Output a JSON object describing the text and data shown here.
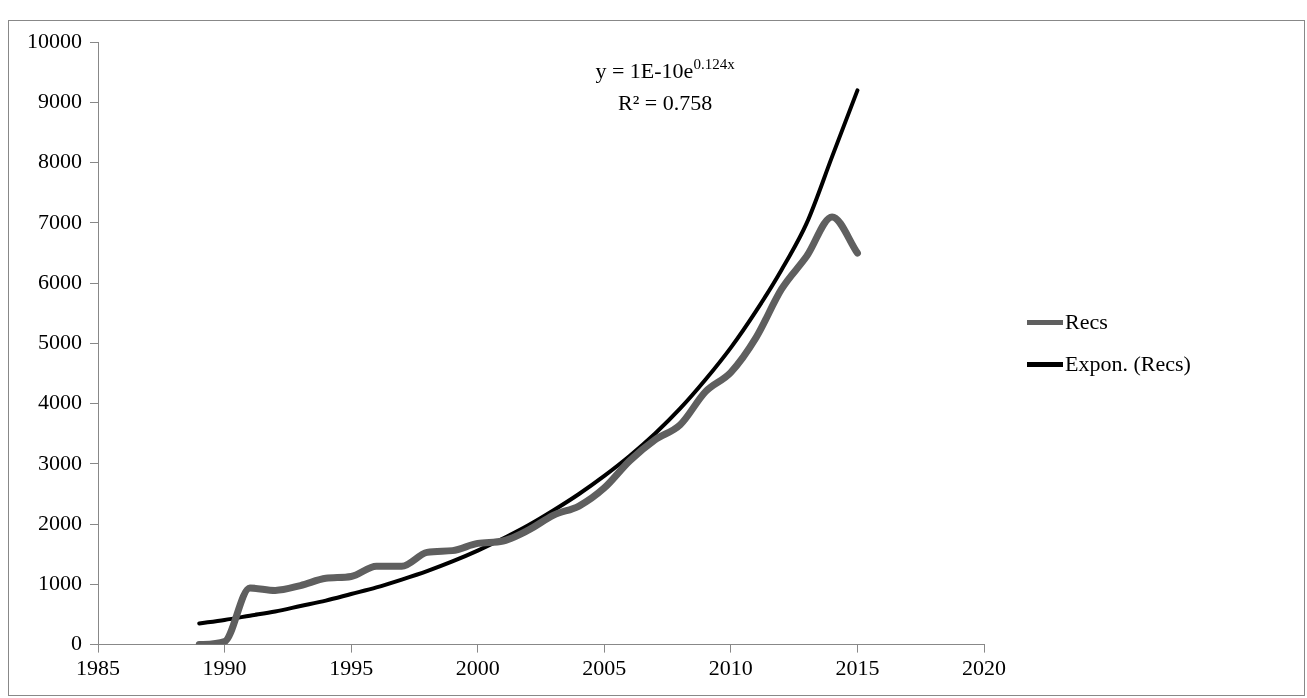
{
  "chart_data": {
    "type": "line",
    "x": [
      1989,
      1990,
      1991,
      1992,
      1993,
      1994,
      1995,
      1996,
      1997,
      1998,
      1999,
      2000,
      2001,
      2002,
      2003,
      2004,
      2005,
      2006,
      2007,
      2008,
      2009,
      2010,
      2011,
      2012,
      2013,
      2014,
      2015
    ],
    "series": [
      {
        "name": "Recs",
        "color": "#5f5f5f",
        "values": [
          0,
          50,
          940,
          900,
          980,
          1100,
          1130,
          1300,
          1300,
          1530,
          1560,
          1680,
          1720,
          1900,
          2150,
          2300,
          2600,
          3050,
          3400,
          3650,
          4200,
          4520,
          5100,
          5900,
          6450,
          7100,
          6500
        ]
      },
      {
        "name": "Expon. (Recs)",
        "color": "#000000",
        "values": [
          350,
          410,
          480,
          550,
          640,
          730,
          840,
          950,
          1080,
          1220,
          1380,
          1560,
          1760,
          1980,
          2230,
          2500,
          2800,
          3130,
          3500,
          3920,
          4400,
          4930,
          5540,
          6220,
          7000,
          8100,
          9200
        ]
      }
    ],
    "xlim": [
      1985,
      2020
    ],
    "xticks": [
      1985,
      1990,
      1995,
      2000,
      2005,
      2010,
      2015,
      2020
    ],
    "ylim": [
      0,
      10000
    ],
    "yticks": [
      0,
      1000,
      2000,
      3000,
      4000,
      5000,
      6000,
      7000,
      8000,
      9000,
      10000
    ],
    "annotations": [
      "y = 1E-10e$^{0.124x}$",
      "R² = 0.758"
    ],
    "grid": false,
    "legend": "right",
    "marker": "none",
    "line_style": "solid"
  }
}
